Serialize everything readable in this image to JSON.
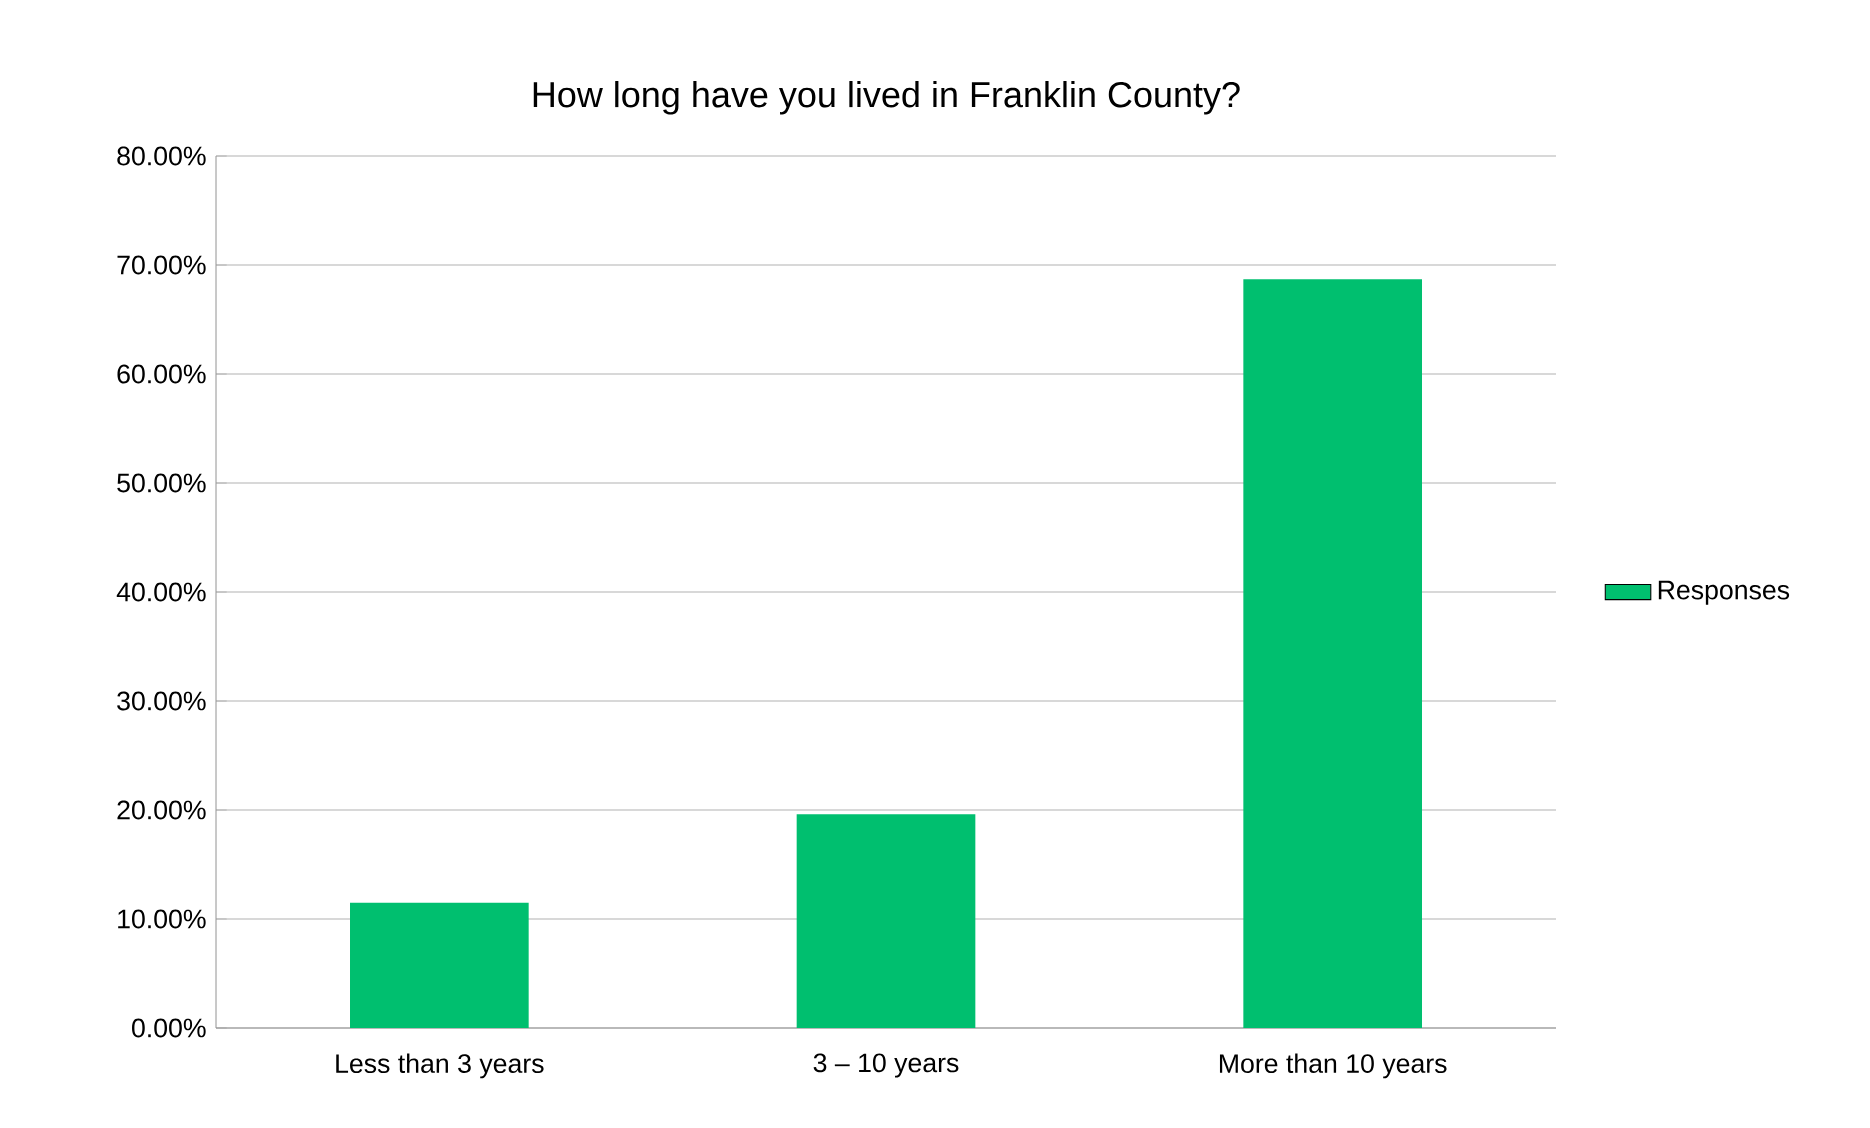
{
  "chart_data": {
    "type": "bar",
    "title": "How long have you lived in Franklin County?",
    "categories": [
      "Less than 3 years",
      "3 – 10 years",
      "More than 10 years"
    ],
    "series": [
      {
        "name": "Responses",
        "color": "#00bf6f",
        "values": [
          11.5,
          19.6,
          68.7
        ]
      }
    ],
    "ylim": [
      0,
      80
    ],
    "yticks": [
      {
        "value": 0,
        "label": "0.00%"
      },
      {
        "value": 10,
        "label": "10.00%"
      },
      {
        "value": 20,
        "label": "20.00%"
      },
      {
        "value": 30,
        "label": "30.00%"
      },
      {
        "value": 40,
        "label": "40.00%"
      },
      {
        "value": 50,
        "label": "50.00%"
      },
      {
        "value": 60,
        "label": "60.00%"
      },
      {
        "value": 70,
        "label": "70.00%"
      },
      {
        "value": 80,
        "label": "80.00%"
      }
    ],
    "grid": "y",
    "legend": "right"
  }
}
